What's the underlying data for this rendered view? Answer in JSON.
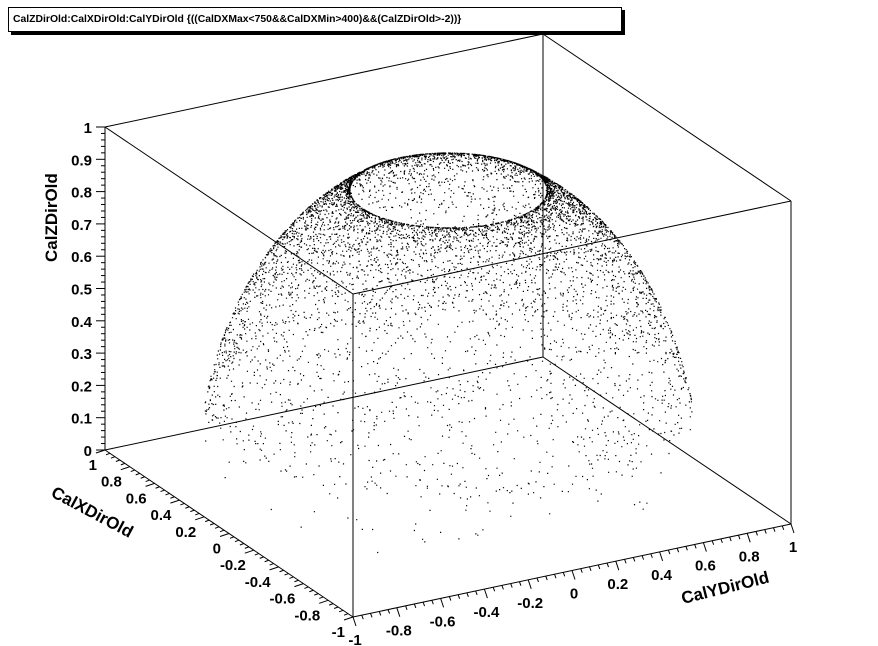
{
  "chart_data": {
    "type": "scatter",
    "title": "CalZDirOld:CalXDirOld:CalYDirOld {((CalDXMax<750&&CalDXMin>400)&&(CalZDirOld>-2))}",
    "xlabel": "CalXDirOld",
    "ylabel": "CalYDirOld",
    "zlabel": "CalZDirOld",
    "xlim": [
      -1,
      1
    ],
    "ylim": [
      -1,
      1
    ],
    "zlim": [
      0,
      1
    ],
    "z_ticks": [
      "0",
      "0.1",
      "0.2",
      "0.3",
      "0.4",
      "0.5",
      "0.6",
      "0.7",
      "0.8",
      "0.9",
      "1"
    ],
    "x_ticks": [
      "1",
      "0.8",
      "0.6",
      "0.4",
      "0.2",
      "0",
      "-0.2",
      "-0.4",
      "-0.6",
      "-0.8",
      "-1"
    ],
    "y_ticks": [
      "-1",
      "-0.8",
      "-0.6",
      "-0.4",
      "-0.2",
      "0",
      "0.2",
      "0.4",
      "0.6",
      "0.8",
      "1"
    ],
    "marker_color": "#000000",
    "grid": false,
    "distribution": "unit hemisphere x^2+y^2+z^2=1, z in [0.25, 0.92], density concentrated toward the top"
  }
}
